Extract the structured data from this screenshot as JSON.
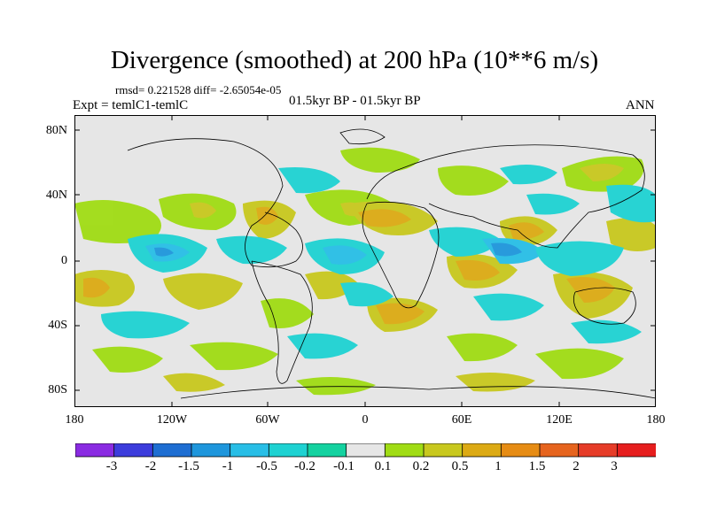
{
  "title": "Divergence (smoothed) at 200 hPa (10**6 m/s)",
  "stats": "rmsd= 0.221528 diff= -2.65054e-05",
  "experiment": "Expt = temlC1-temlC",
  "period": "01.5kyr BP - 01.5kyr BP",
  "season": "ANN",
  "map": {
    "lat_labels": [
      "80N",
      "40N",
      "0",
      "40S",
      "80S"
    ],
    "lon_labels": [
      "180",
      "120W",
      "60W",
      "0",
      "60E",
      "120E",
      "180"
    ]
  },
  "colorbar": {
    "labels": [
      "-3",
      "-2",
      "-1.5",
      "-1",
      "-0.5",
      "-0.2",
      "-0.1",
      "0.1",
      "0.2",
      "0.5",
      "1",
      "1.5",
      "2",
      "3"
    ],
    "colors": [
      "#8a2be2",
      "#3c3cdc",
      "#1e6ed2",
      "#1e96dc",
      "#28bee6",
      "#1ed2d2",
      "#14d2a0",
      "#e6e6e6",
      "#a0dc14",
      "#c8c81e",
      "#dcaa14",
      "#e68c14",
      "#e6641e",
      "#e63c28",
      "#e61e1e"
    ]
  },
  "colors": {
    "land_outline": "#000000",
    "background_field": "#e6e6e6"
  }
}
